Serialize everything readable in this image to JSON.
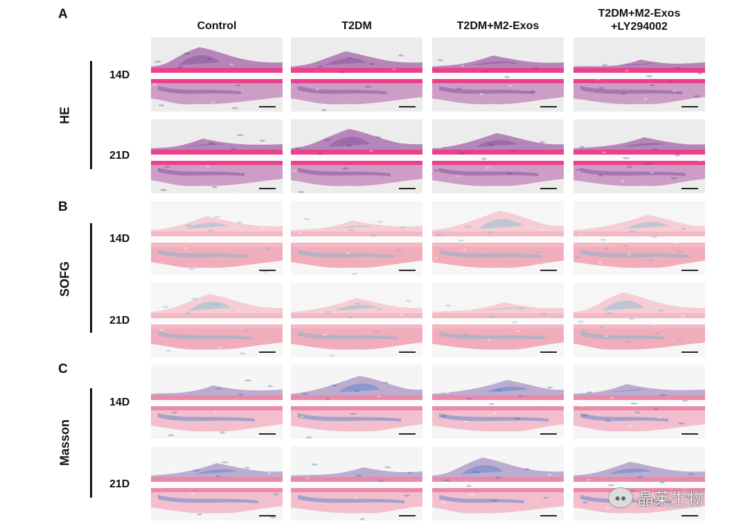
{
  "panels": [
    {
      "letter": "A",
      "stain": "HE",
      "theme": "he"
    },
    {
      "letter": "B",
      "stain": "SOFG",
      "theme": "sofg"
    },
    {
      "letter": "C",
      "stain": "Masson",
      "theme": "masson"
    }
  ],
  "columns": [
    {
      "line1": "Control",
      "line2": ""
    },
    {
      "line1": "T2DM",
      "line2": ""
    },
    {
      "line1": "T2DM+M2-Exos",
      "line2": ""
    },
    {
      "line1": "T2DM+M2-Exos",
      "line2": "+LY294002"
    }
  ],
  "timepoints": [
    "14D",
    "21D"
  ],
  "watermark": {
    "text": "晶莱生物",
    "icon": "wechat-icon"
  },
  "themes": {
    "he": {
      "bg": "#ececec",
      "tissue": "#e8428a",
      "callus": "#b07ab4",
      "dark": "#6b3d8f",
      "marrow": "#c88fc0"
    },
    "sofg": {
      "bg": "#f6f6f6",
      "tissue": "#f2b8c4",
      "callus": "#f5c9cf",
      "dark": "#5cb8d8",
      "marrow": "#f0a0b0"
    },
    "masson": {
      "bg": "#f5f5f5",
      "tissue": "#e98aa8",
      "callus": "#b8a4cc",
      "dark": "#2a73c9",
      "marrow": "#f3b5c6"
    }
  }
}
